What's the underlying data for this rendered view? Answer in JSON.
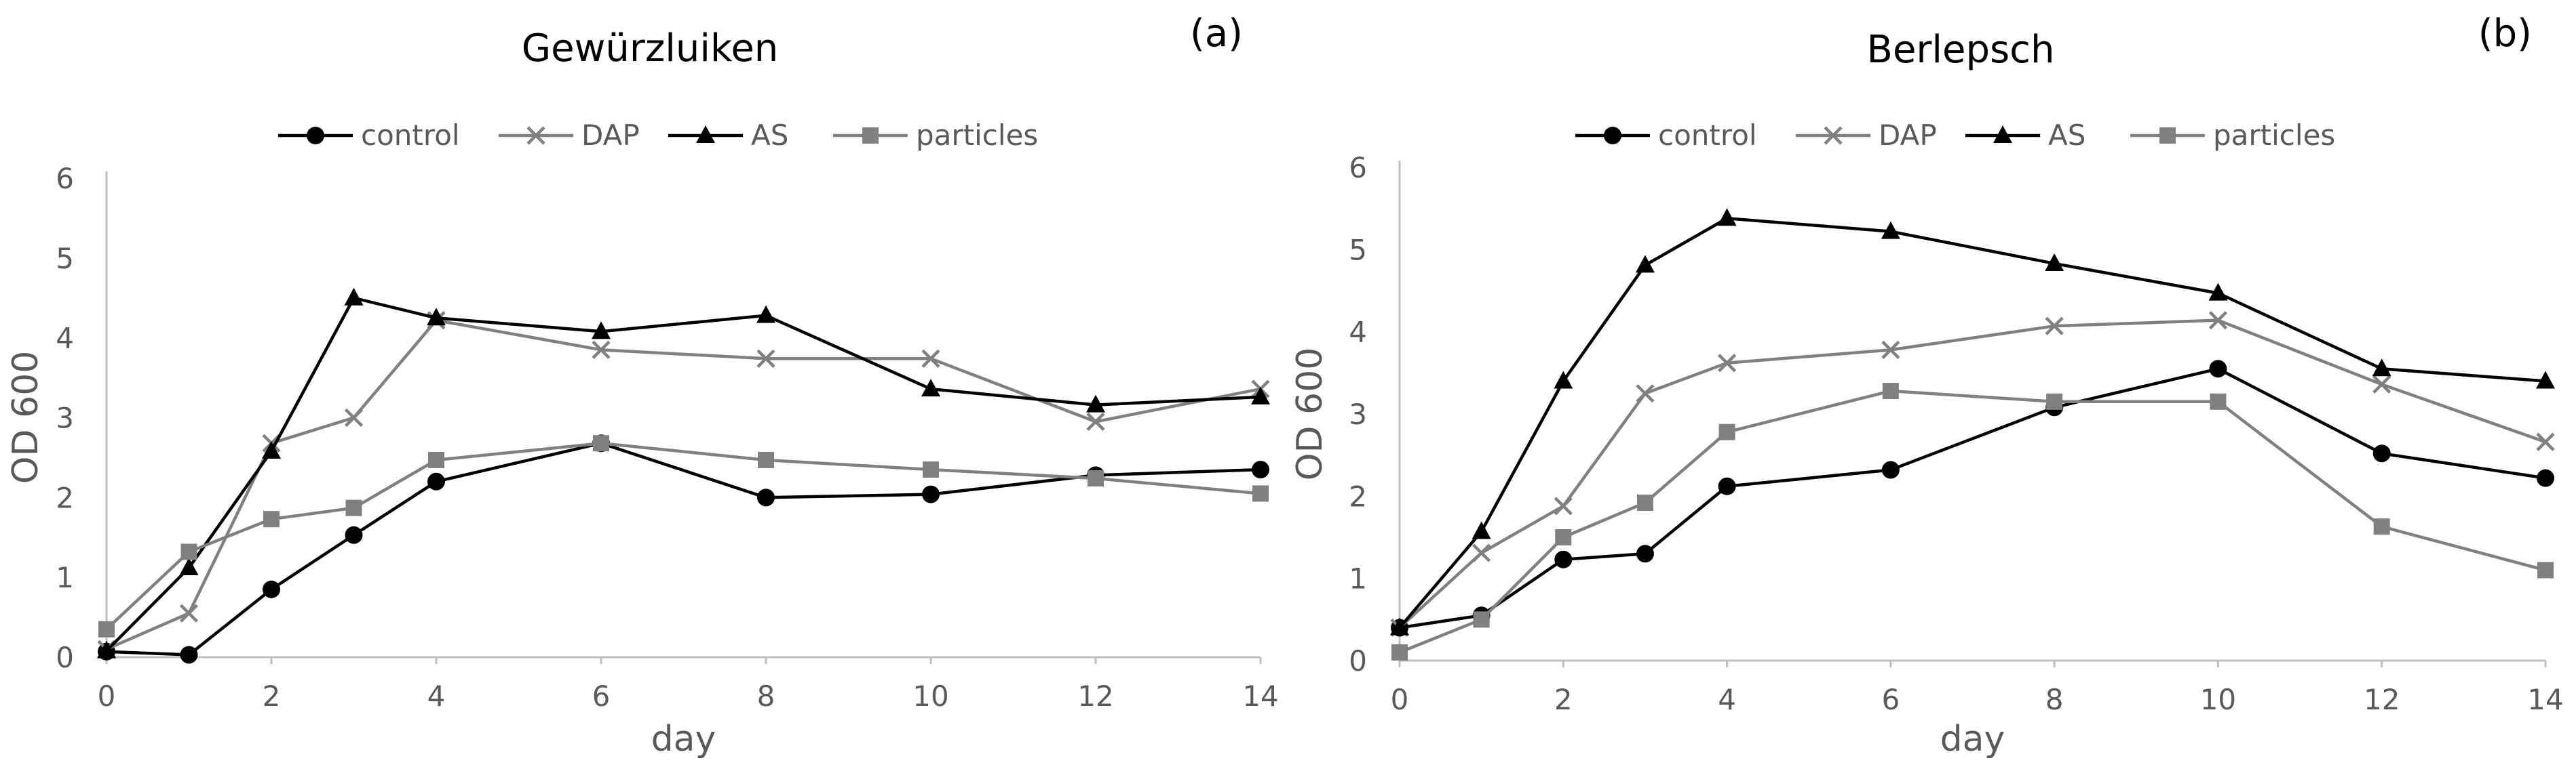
{
  "chart_data": [
    {
      "type": "line",
      "title": "Gewürzluiken",
      "panel_label": "(a)",
      "xlabel": "day",
      "ylabel": "OD 600",
      "xlim": [
        0,
        14
      ],
      "ylim": [
        0,
        6
      ],
      "x_ticks": [
        0,
        2,
        4,
        6,
        8,
        10,
        12,
        14
      ],
      "y_ticks": [
        0,
        1,
        2,
        3,
        4,
        5,
        6
      ],
      "grid": false,
      "legend_position": "top",
      "series": [
        {
          "name": "control",
          "marker": "circle",
          "color": "#000000",
          "x": [
            0,
            1,
            2,
            3,
            4,
            6,
            8,
            10,
            12,
            14
          ],
          "y": [
            0.07,
            0.03,
            0.85,
            1.53,
            2.2,
            2.68,
            2.0,
            2.04,
            2.28,
            2.35
          ]
        },
        {
          "name": "DAP",
          "marker": "x",
          "color": "#808080",
          "x": [
            0,
            1,
            2,
            3,
            4,
            6,
            8,
            10,
            12,
            14
          ],
          "y": [
            0.1,
            0.55,
            2.68,
            3.0,
            4.22,
            3.85,
            3.74,
            3.74,
            2.95,
            3.36
          ]
        },
        {
          "name": "AS",
          "marker": "triangle",
          "color": "#000000",
          "x": [
            0,
            1,
            2,
            3,
            4,
            6,
            8,
            10,
            12,
            14
          ],
          "y": [
            0.08,
            1.12,
            2.58,
            4.5,
            4.25,
            4.08,
            4.28,
            3.36,
            3.16,
            3.26
          ]
        },
        {
          "name": "particles",
          "marker": "square",
          "color": "#808080",
          "x": [
            0,
            1,
            2,
            3,
            4,
            6,
            8,
            10,
            12,
            14
          ],
          "y": [
            0.35,
            1.32,
            1.73,
            1.87,
            2.47,
            2.68,
            2.47,
            2.35,
            2.24,
            2.05
          ]
        }
      ]
    },
    {
      "type": "line",
      "title": "Berlepsch",
      "panel_label": "(b)",
      "xlabel": "day",
      "ylabel": "OD 600",
      "xlim": [
        0,
        14
      ],
      "ylim": [
        0,
        6
      ],
      "x_ticks": [
        0,
        2,
        4,
        6,
        8,
        10,
        12,
        14
      ],
      "y_ticks": [
        0,
        1,
        2,
        3,
        4,
        5,
        6
      ],
      "grid": false,
      "legend_position": "top",
      "series": [
        {
          "name": "control",
          "marker": "circle",
          "color": "#000000",
          "x": [
            0,
            1,
            2,
            3,
            4,
            6,
            8,
            10,
            12,
            14
          ],
          "y": [
            0.4,
            0.55,
            1.23,
            1.3,
            2.12,
            2.32,
            3.08,
            3.55,
            2.52,
            2.22
          ]
        },
        {
          "name": "DAP",
          "marker": "x",
          "color": "#808080",
          "x": [
            0,
            1,
            2,
            3,
            4,
            6,
            8,
            10,
            12,
            14
          ],
          "y": [
            0.4,
            1.31,
            1.88,
            3.25,
            3.62,
            3.78,
            4.07,
            4.14,
            3.36,
            2.66
          ]
        },
        {
          "name": "AS",
          "marker": "triangle",
          "color": "#000000",
          "x": [
            0,
            1,
            2,
            3,
            4,
            6,
            8,
            10,
            12,
            14
          ],
          "y": [
            0.4,
            1.57,
            3.4,
            4.81,
            5.38,
            5.22,
            4.83,
            4.47,
            3.55,
            3.4
          ]
        },
        {
          "name": "particles",
          "marker": "square",
          "color": "#808080",
          "x": [
            0,
            1,
            2,
            3,
            4,
            6,
            8,
            10,
            12,
            14
          ],
          "y": [
            0.1,
            0.5,
            1.5,
            1.92,
            2.78,
            3.28,
            3.15,
            3.15,
            1.63,
            1.1
          ]
        }
      ]
    }
  ]
}
